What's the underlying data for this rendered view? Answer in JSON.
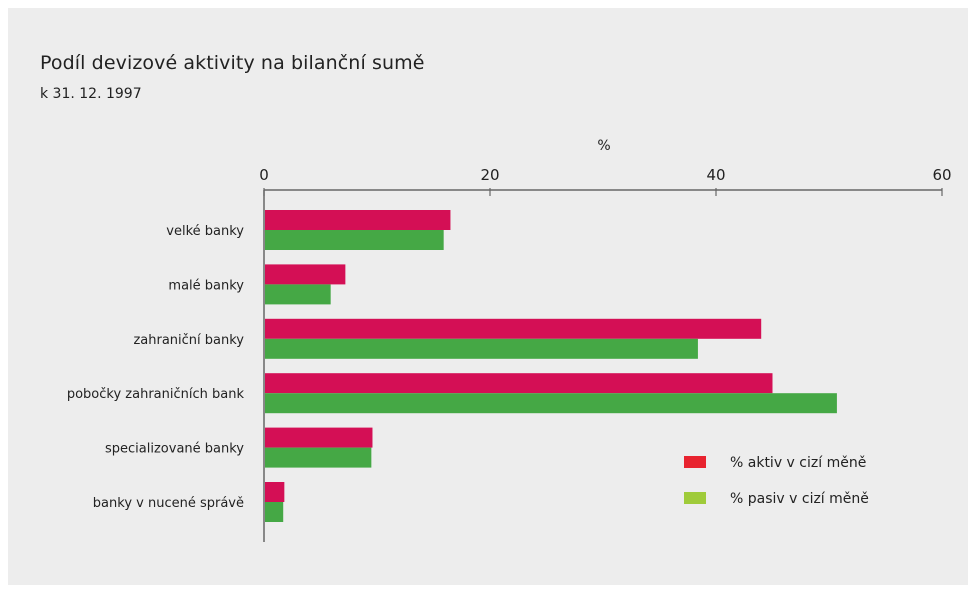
{
  "chart_data": {
    "type": "bar",
    "orientation": "horizontal",
    "title": "Podíl devizové aktivity na bilanční sumě",
    "subtitle": "k 31. 12. 1997",
    "xlabel": "%",
    "xlim": [
      0,
      60
    ],
    "xticks": [
      "0",
      "20",
      "40",
      "60"
    ],
    "categories": [
      "velké banky",
      "malé banky",
      "zahraniční banky",
      "pobočky zahraničních bank",
      "specializované banky",
      "banky v nucené správě"
    ],
    "series": [
      {
        "name": "% aktiv v cizí měně",
        "color": "#d40f55",
        "values": [
          16.5,
          7.2,
          44.0,
          45.0,
          9.6,
          1.8
        ]
      },
      {
        "name": "% pasiv v cizí měně",
        "color": "#45a845",
        "values": [
          15.9,
          5.9,
          38.4,
          50.7,
          9.5,
          1.7
        ]
      }
    ],
    "legend_colors": [
      "#e8232f",
      "#9fcb3a"
    ],
    "legend_position": "bottom-right",
    "grid": false
  }
}
